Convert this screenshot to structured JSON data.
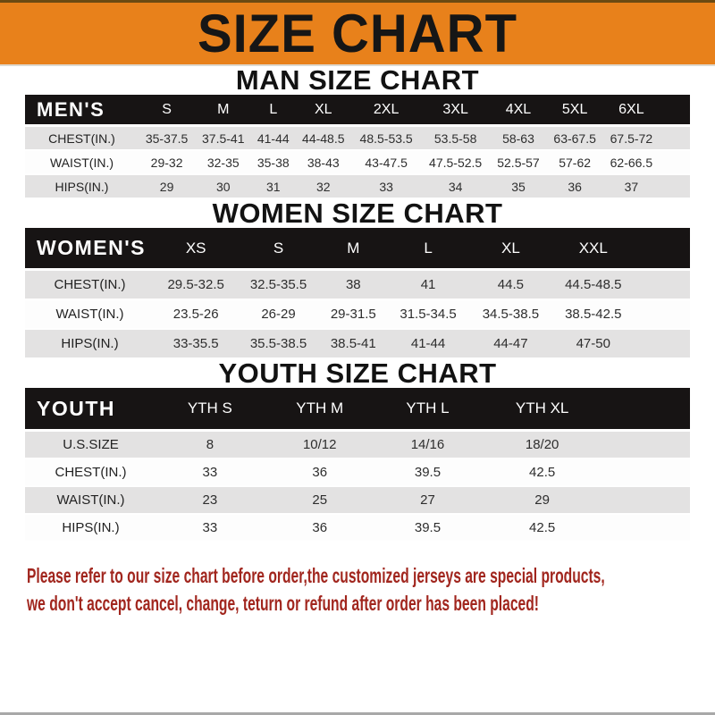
{
  "banner": {
    "title": "SIZE CHART"
  },
  "men": {
    "title": "MAN SIZE CHART",
    "label": "MEN'S",
    "columns": [
      "S",
      "M",
      "L",
      "XL",
      "2XL",
      "3XL",
      "4XL",
      "5XL",
      "6XL"
    ],
    "rows": [
      {
        "label": "CHEST(IN.)",
        "values": [
          "35-37.5",
          "37.5-41",
          "41-44",
          "44-48.5",
          "48.5-53.5",
          "53.5-58",
          "58-63",
          "63-67.5",
          "67.5-72"
        ]
      },
      {
        "label": "WAIST(IN.)",
        "values": [
          "29-32",
          "32-35",
          "35-38",
          "38-43",
          "43-47.5",
          "47.5-52.5",
          "52.5-57",
          "57-62",
          "62-66.5"
        ]
      },
      {
        "label": "HIPS(IN.)",
        "values": [
          "29",
          "30",
          "31",
          "32",
          "33",
          "34",
          "35",
          "36",
          "37"
        ]
      }
    ]
  },
  "women": {
    "title": "WOMEN SIZE CHART",
    "label": "WOMEN'S",
    "columns": [
      "XS",
      "S",
      "M",
      "L",
      "XL",
      "XXL"
    ],
    "rows": [
      {
        "label": "CHEST(IN.)",
        "values": [
          "29.5-32.5",
          "32.5-35.5",
          "38",
          "41",
          "44.5",
          "44.5-48.5"
        ]
      },
      {
        "label": "WAIST(IN.)",
        "values": [
          "23.5-26",
          "26-29",
          "29-31.5",
          "31.5-34.5",
          "34.5-38.5",
          "38.5-42.5"
        ]
      },
      {
        "label": "HIPS(IN.)",
        "values": [
          "33-35.5",
          "35.5-38.5",
          "38.5-41",
          "41-44",
          "44-47",
          "47-50"
        ]
      }
    ]
  },
  "youth": {
    "title": "YOUTH SIZE CHART",
    "label": "YOUTH",
    "columns": [
      "YTH S",
      "YTH M",
      "YTH L",
      "YTH XL"
    ],
    "rows": [
      {
        "label": "U.S.SIZE",
        "values": [
          "8",
          "10/12",
          "14/16",
          "18/20"
        ]
      },
      {
        "label": "CHEST(IN.)",
        "values": [
          "33",
          "36",
          "39.5",
          "42.5"
        ]
      },
      {
        "label": "WAIST(IN.)",
        "values": [
          "23",
          "25",
          "27",
          "29"
        ]
      },
      {
        "label": "HIPS(IN.)",
        "values": [
          "33",
          "36",
          "39.5",
          "42.5"
        ]
      }
    ]
  },
  "footer": {
    "line1": "Please refer to our size chart before order,the customized jerseys are special products,",
    "line2": "we don't accept cancel, change, teturn or refund after order has been placed!"
  },
  "colors": {
    "banner_orange": "#E8811B",
    "header_black": "#171414",
    "stripe_gray": "#E3E2E2",
    "note_red": "#A1261E"
  }
}
